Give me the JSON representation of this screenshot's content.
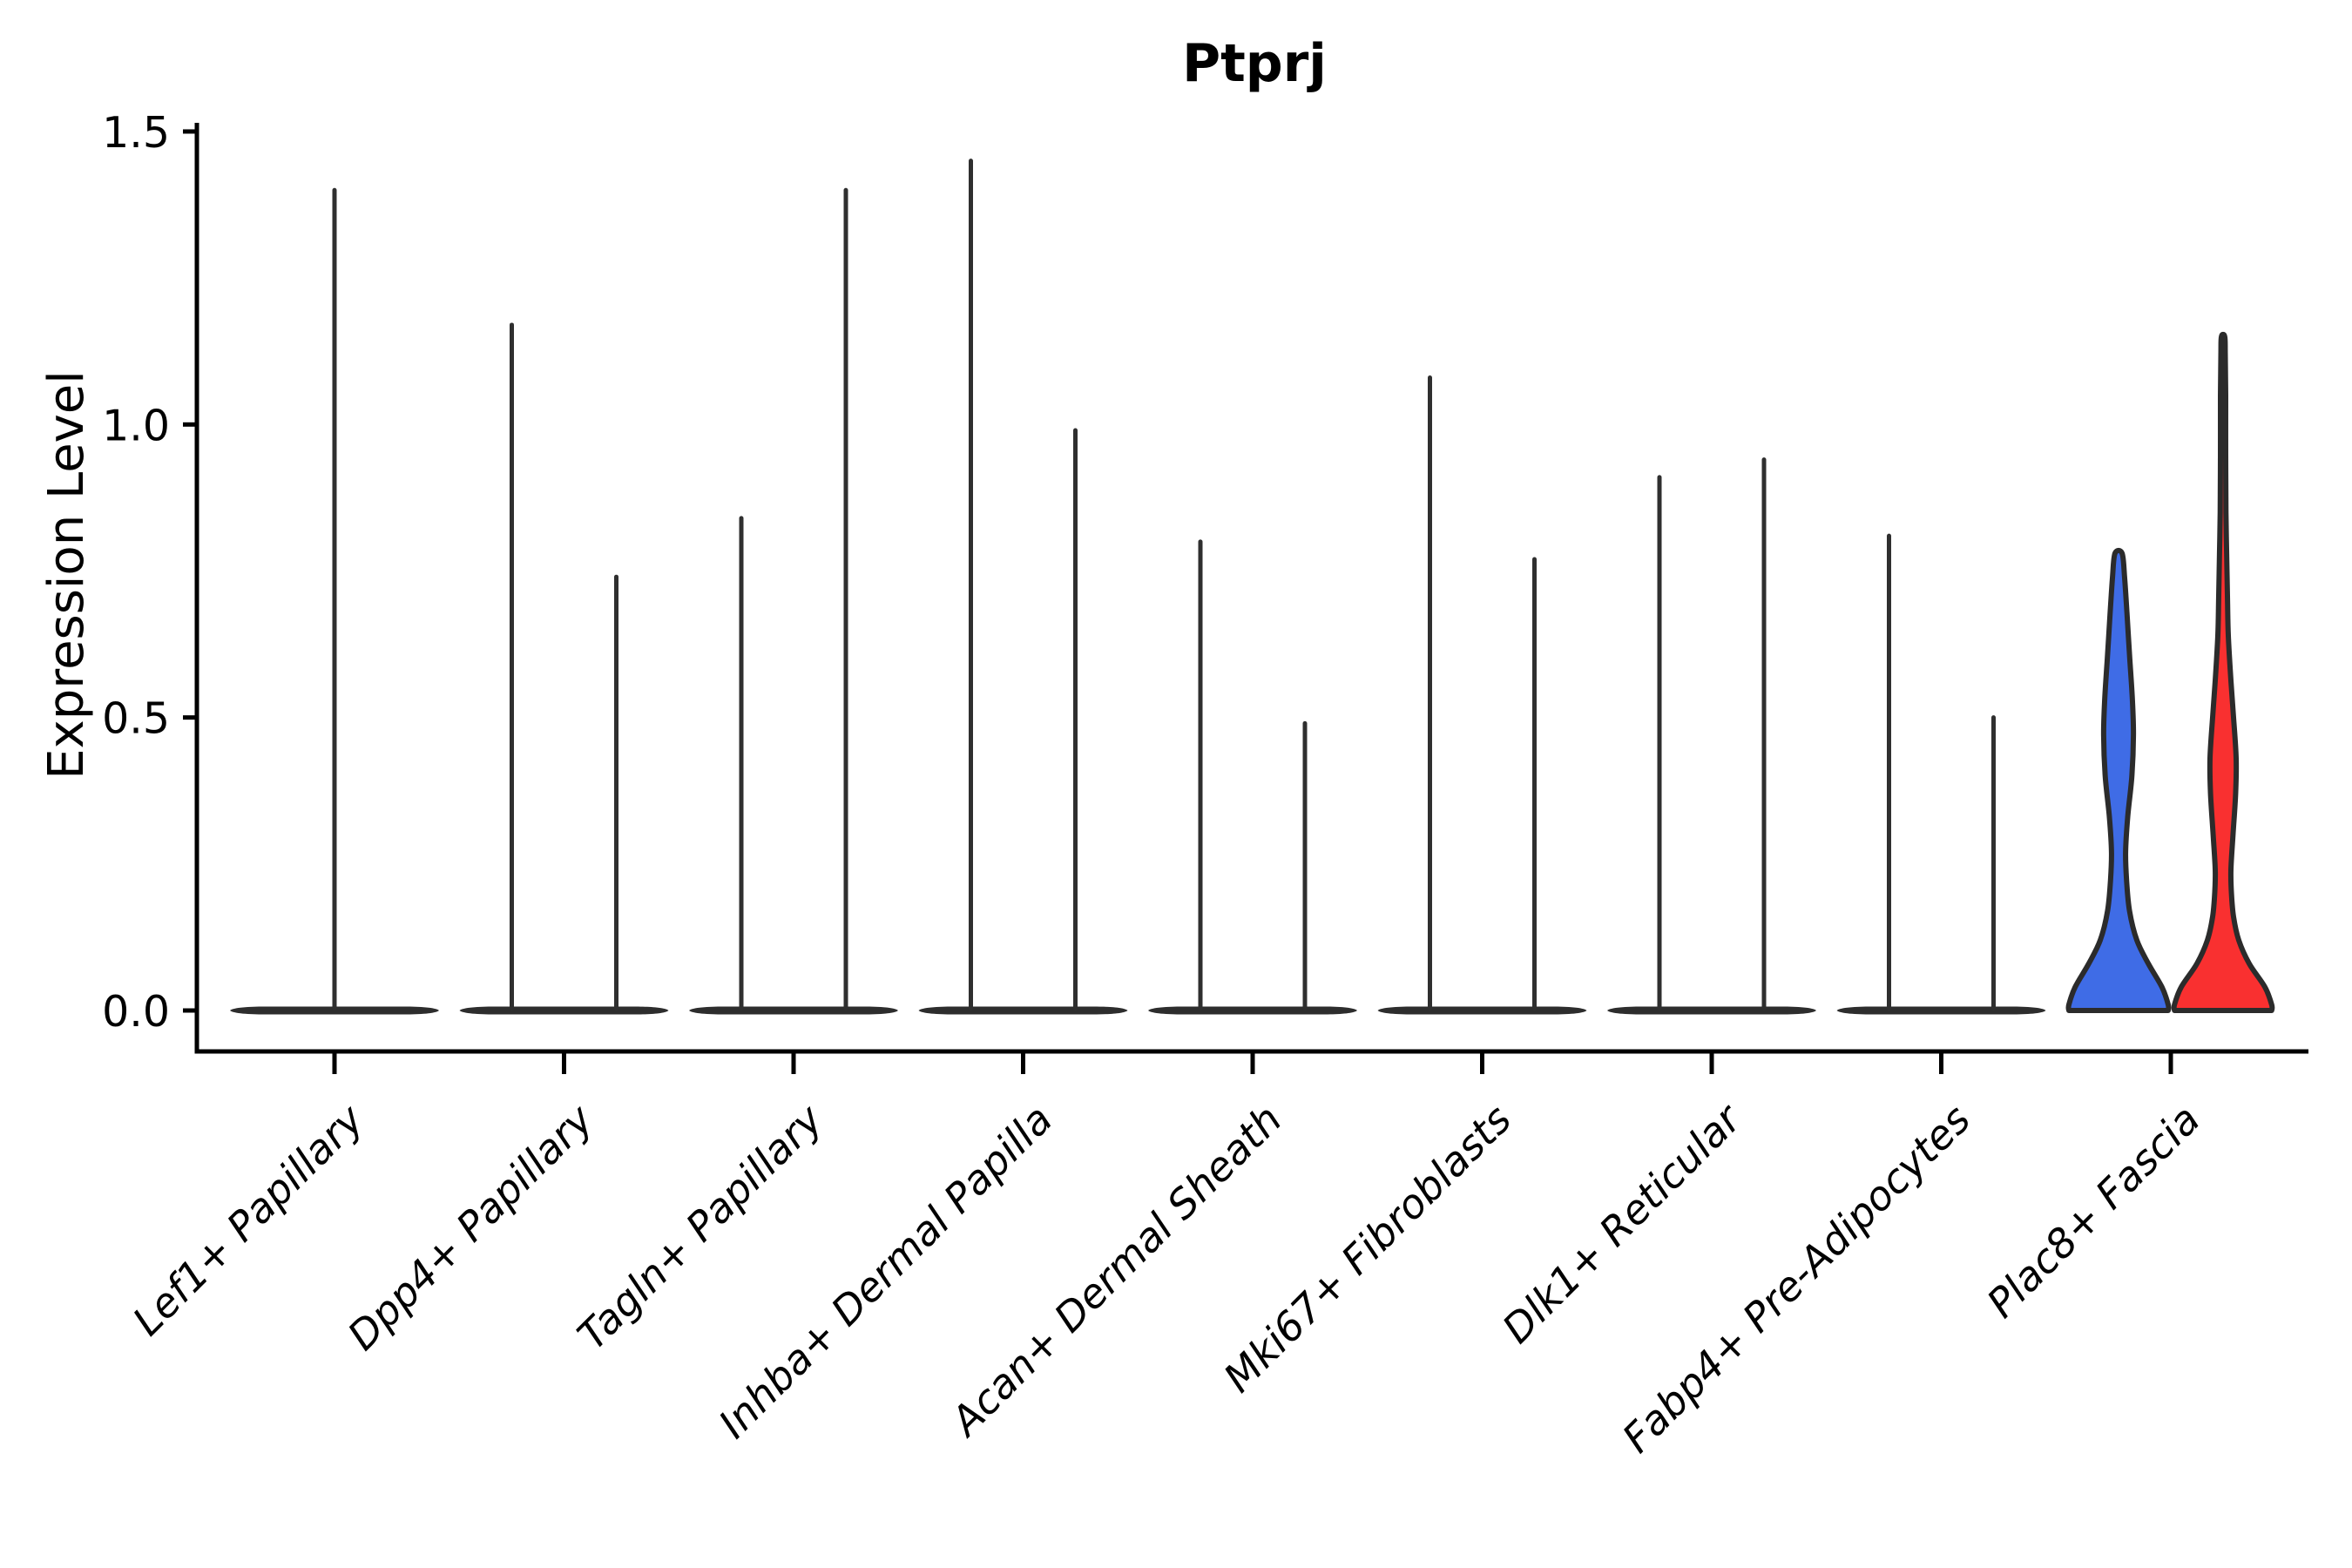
{
  "chart_data": {
    "type": "violin",
    "title": "Ptprj",
    "ylabel": "Expression Level",
    "xlabel": "",
    "yticks": [
      0.0,
      0.5,
      1.0,
      1.5
    ],
    "ylim": [
      -0.07,
      1.57
    ],
    "grid": false,
    "legend": "none",
    "x_label_rotation_degrees": 45,
    "categories": [
      "Lef1+ Papillary",
      "Dpp4+ Papillary",
      "Tagln+ Papillary",
      "Inhba+ Dermal Papilla",
      "Acan+ Dermal Sheath",
      "Mki67+ Fibroblasts",
      "Dlk1+ Reticular",
      "Fabp4+ Pre-Adipocytes",
      "Plac8+ Fascia"
    ],
    "groups": [
      {
        "category": "Lef1+ Papillary",
        "violins": [
          {
            "position": "center",
            "shape": "spike",
            "max_expression": 1.4
          }
        ]
      },
      {
        "category": "Dpp4+ Papillary",
        "violins": [
          {
            "position": "left",
            "shape": "spike",
            "max_expression": 1.17
          },
          {
            "position": "right",
            "shape": "spike",
            "max_expression": 0.74
          }
        ]
      },
      {
        "category": "Tagln+ Papillary",
        "violins": [
          {
            "position": "left",
            "shape": "spike",
            "max_expression": 0.84
          },
          {
            "position": "right",
            "shape": "spike",
            "max_expression": 1.4
          }
        ]
      },
      {
        "category": "Inhba+ Dermal Papilla",
        "violins": [
          {
            "position": "left",
            "shape": "spike",
            "max_expression": 1.45
          },
          {
            "position": "right",
            "shape": "spike",
            "max_expression": 0.99
          }
        ]
      },
      {
        "category": "Acan+ Dermal Sheath",
        "violins": [
          {
            "position": "left",
            "shape": "spike",
            "max_expression": 0.8
          },
          {
            "position": "right",
            "shape": "spike",
            "max_expression": 0.49
          }
        ]
      },
      {
        "category": "Mki67+ Fibroblasts",
        "violins": [
          {
            "position": "left",
            "shape": "spike",
            "max_expression": 1.08
          },
          {
            "position": "right",
            "shape": "spike",
            "max_expression": 0.77
          }
        ]
      },
      {
        "category": "Dlk1+ Reticular",
        "violins": [
          {
            "position": "left",
            "shape": "spike",
            "max_expression": 0.91
          },
          {
            "position": "right",
            "shape": "spike",
            "max_expression": 0.94
          }
        ]
      },
      {
        "category": "Fabp4+ Pre-Adipocytes",
        "violins": [
          {
            "position": "left",
            "shape": "spike",
            "max_expression": 0.81
          },
          {
            "position": "right",
            "shape": "spike",
            "max_expression": 0.5
          }
        ]
      },
      {
        "category": "Plac8+ Fascia",
        "violins": [
          {
            "position": "left",
            "shape": "violin",
            "max_expression": 0.78,
            "fill": "#3F6CE6",
            "profile": [
              [
                0.0,
                0.95
              ],
              [
                0.01,
                0.95
              ],
              [
                0.04,
                0.83
              ],
              [
                0.08,
                0.57
              ],
              [
                0.12,
                0.35
              ],
              [
                0.17,
                0.21
              ],
              [
                0.22,
                0.155
              ],
              [
                0.27,
                0.135
              ],
              [
                0.33,
                0.175
              ],
              [
                0.4,
                0.255
              ],
              [
                0.47,
                0.285
              ],
              [
                0.53,
                0.265
              ],
              [
                0.6,
                0.215
              ],
              [
                0.68,
                0.16
              ],
              [
                0.74,
                0.115
              ],
              [
                0.78,
                0.068
              ]
            ]
          },
          {
            "position": "right",
            "shape": "violin",
            "max_expression": 1.15,
            "fill": "#F93030",
            "profile": [
              [
                0.0,
                0.93
              ],
              [
                0.01,
                0.93
              ],
              [
                0.04,
                0.8
              ],
              [
                0.08,
                0.5
              ],
              [
                0.12,
                0.3
              ],
              [
                0.16,
                0.2
              ],
              [
                0.2,
                0.16
              ],
              [
                0.24,
                0.15
              ],
              [
                0.3,
                0.19
              ],
              [
                0.37,
                0.24
              ],
              [
                0.43,
                0.25
              ],
              [
                0.5,
                0.2
              ],
              [
                0.57,
                0.145
              ],
              [
                0.64,
                0.1
              ],
              [
                0.7,
                0.085
              ],
              [
                0.78,
                0.068
              ],
              [
                0.85,
                0.055
              ],
              [
                0.95,
                0.05
              ],
              [
                1.05,
                0.05
              ],
              [
                1.12,
                0.042
              ],
              [
                1.15,
                0.032
              ]
            ]
          }
        ]
      }
    ],
    "colors": {
      "spike_line": "#2F2F2F",
      "baseline_density": "#2D2D2D",
      "violin_outline": "#2B2B2B",
      "violin_fill_left": "#3F6CE6",
      "violin_fill_right": "#F93030",
      "axis": "#000000",
      "background": "#FFFFFF"
    }
  }
}
